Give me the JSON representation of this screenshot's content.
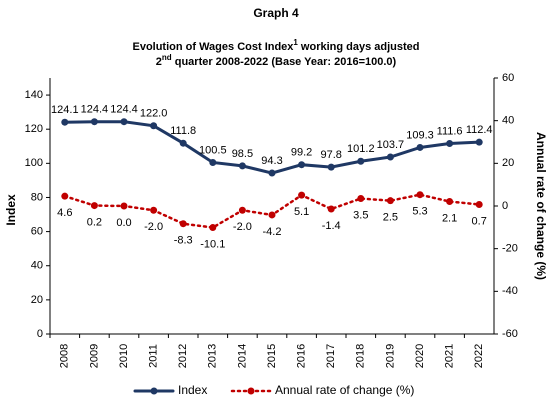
{
  "header": "Graph 4",
  "chart_data": {
    "type": "line",
    "title": [
      "Evolution of Wages Cost Index",
      "1",
      " working days adjusted"
    ],
    "subtitle": [
      "2",
      "nd",
      " quarter 2008-2022 (Base Year: 2016=100.0)"
    ],
    "ylabel": "Index",
    "y2label": "Annual rate of change (%)",
    "categories": [
      "2008",
      "2009",
      "2010",
      "2011",
      "2012",
      "2013",
      "2014",
      "2015",
      "2016",
      "2017",
      "2018",
      "2019",
      "2020",
      "2021",
      "2022"
    ],
    "ylim": [
      0,
      150
    ],
    "yticks": [
      0,
      20,
      40,
      60,
      80,
      100,
      120,
      140
    ],
    "y2lim": [
      -60,
      60
    ],
    "y2ticks": [
      -60,
      -40,
      -20,
      0,
      20,
      40,
      60
    ],
    "series": [
      {
        "name": "Index",
        "color": "#1f3864",
        "values": [
          124.1,
          124.4,
          124.4,
          122.0,
          111.8,
          100.5,
          98.5,
          94.3,
          99.2,
          97.8,
          101.2,
          103.7,
          109.3,
          111.6,
          112.4
        ],
        "value_labels": [
          "124.1",
          "124.4",
          "124.4",
          "122.0",
          "111.8",
          "100.5",
          "98.5",
          "94.3",
          "99.2",
          "97.8",
          "101.2",
          "103.7",
          "109.3",
          "111.6",
          "112.4"
        ]
      },
      {
        "name": "Annual rate of change (%)",
        "color": "#c00000",
        "axis": "y2",
        "dashed": true,
        "values": [
          4.6,
          0.2,
          0.0,
          -2.0,
          -8.3,
          -10.1,
          -2.0,
          -4.2,
          5.1,
          -1.4,
          3.5,
          2.5,
          5.3,
          2.1,
          0.7
        ],
        "value_labels": [
          "4.6",
          "0.2",
          "0.0",
          "-2.0",
          "-8.3",
          "-10.1",
          "-2.0",
          "-4.2",
          "5.1",
          "-1.4",
          "3.5",
          "2.5",
          "5.3",
          "2.1",
          "0.7"
        ]
      }
    ]
  }
}
